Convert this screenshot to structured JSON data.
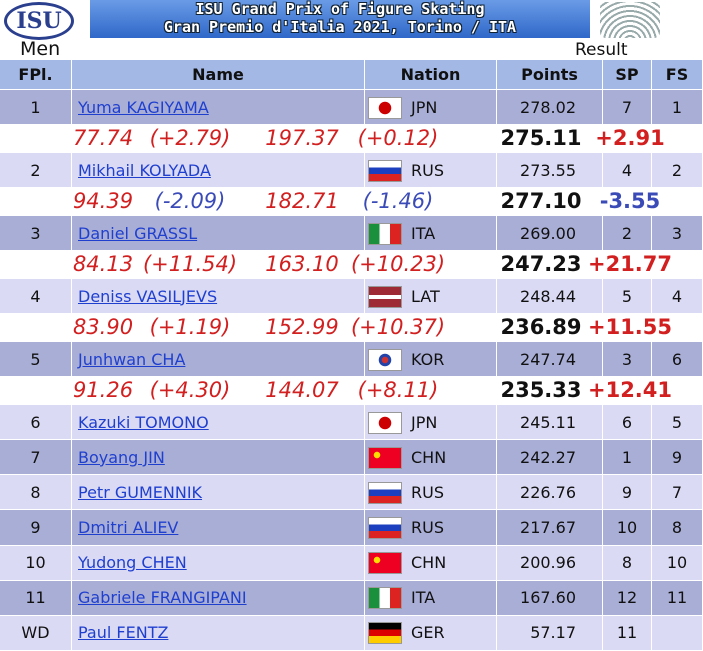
{
  "header": {
    "logo": "ISU",
    "title_line1": "ISU Grand Prix of Figure Skating",
    "title_line2": "Gran Premio d'Italia 2021, Torino / ITA",
    "category": "Men",
    "result": "Result"
  },
  "table": {
    "columns": [
      "FPl.",
      "Name",
      "Nation",
      "Points",
      "SP",
      "FS"
    ],
    "rows": [
      {
        "place": "1",
        "name": "Yuma KAGIYAMA",
        "nation": "JPN",
        "points": "278.02",
        "sp": "7",
        "fs": "1",
        "comparison": [
          "77.74",
          "(+2.79)",
          "197.37",
          "(+0.12)",
          "275.11",
          "+2.91"
        ]
      },
      {
        "place": "2",
        "name": "Mikhail KOLYADA",
        "nation": "RUS",
        "points": "273.55",
        "sp": "4",
        "fs": "2",
        "comparison": [
          "94.39",
          "(-2.09)",
          "182.71",
          "(-1.46)",
          "277.10",
          "-3.55"
        ]
      },
      {
        "place": "3",
        "name": "Daniel GRASSL",
        "nation": "ITA",
        "points": "269.00",
        "sp": "2",
        "fs": "3",
        "comparison": [
          "84.13",
          "(+11.54)",
          "163.10",
          "(+10.23)",
          "247.23",
          "+21.77"
        ]
      },
      {
        "place": "4",
        "name": "Deniss VASILJEVS",
        "nation": "LAT",
        "points": "248.44",
        "sp": "5",
        "fs": "4",
        "comparison": [
          "83.90",
          "(+1.19)",
          "152.99",
          "(+10.37)",
          "236.89",
          "+11.55"
        ]
      },
      {
        "place": "5",
        "name": "Junhwan CHA",
        "nation": "KOR",
        "points": "247.74",
        "sp": "3",
        "fs": "6",
        "comparison": [
          "91.26",
          "(+4.30)",
          "144.07",
          "(+8.11)",
          "235.33",
          "+12.41"
        ]
      },
      {
        "place": "6",
        "name": "Kazuki TOMONO",
        "nation": "JPN",
        "points": "245.11",
        "sp": "6",
        "fs": "5"
      },
      {
        "place": "7",
        "name": "Boyang JIN",
        "nation": "CHN",
        "points": "242.27",
        "sp": "1",
        "fs": "9"
      },
      {
        "place": "8",
        "name": "Petr GUMENNIK",
        "nation": "RUS",
        "points": "226.76",
        "sp": "9",
        "fs": "7"
      },
      {
        "place": "9",
        "name": "Dmitri ALIEV",
        "nation": "RUS",
        "points": "217.67",
        "sp": "10",
        "fs": "8"
      },
      {
        "place": "10",
        "name": "Yudong CHEN",
        "nation": "CHN",
        "points": "200.96",
        "sp": "8",
        "fs": "10"
      },
      {
        "place": "11",
        "name": "Gabriele FRANGIPANI",
        "nation": "ITA",
        "points": "167.60",
        "sp": "12",
        "fs": "11"
      },
      {
        "place": "WD",
        "name": "Paul FENTZ",
        "nation": "GER",
        "points": "57.17",
        "sp": "11"
      }
    ]
  }
}
